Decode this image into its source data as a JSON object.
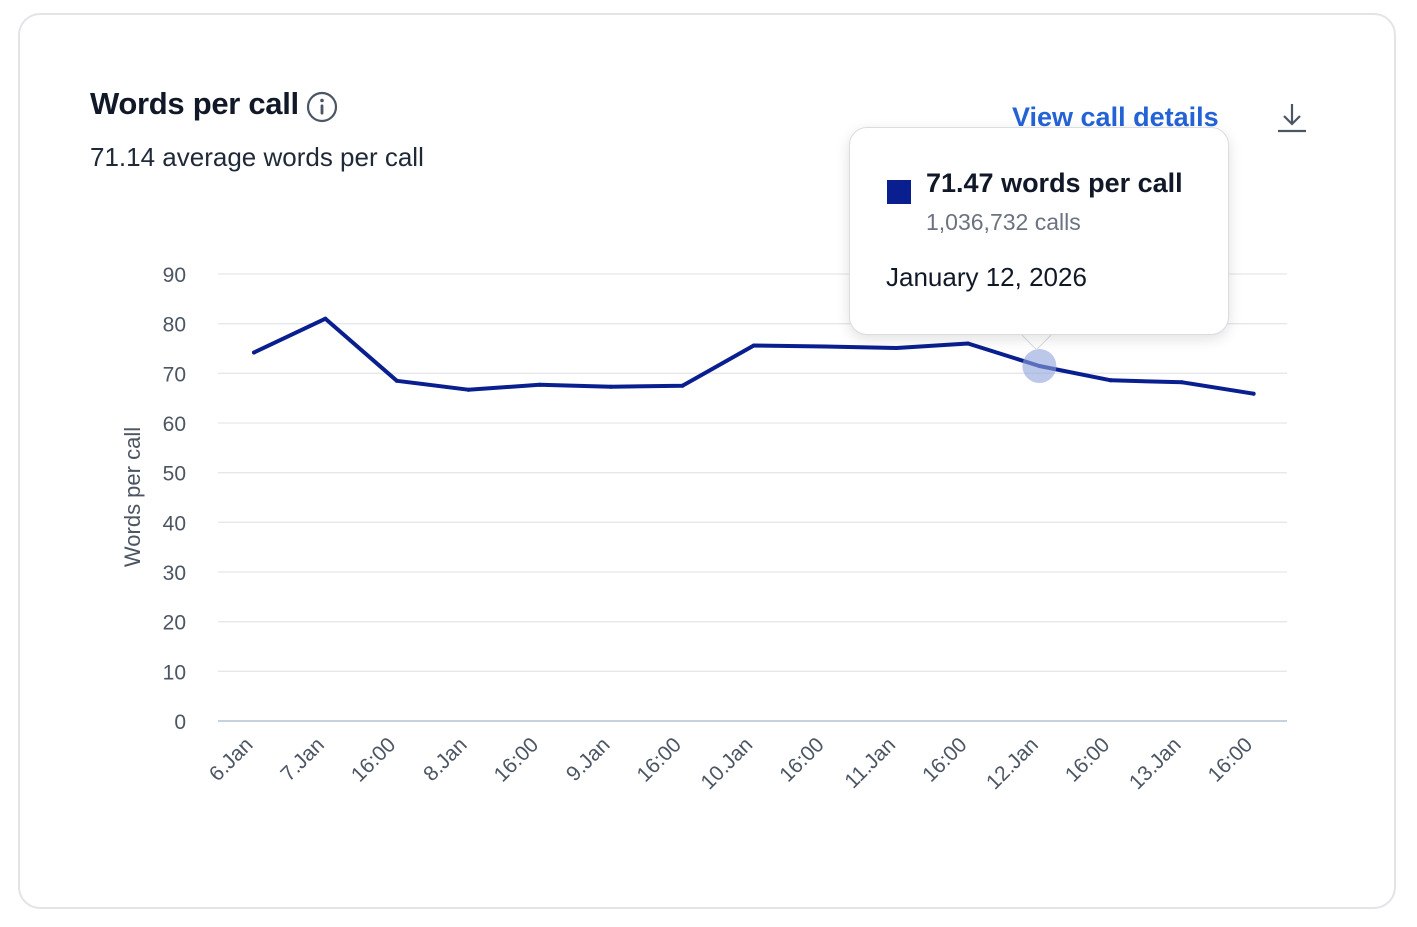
{
  "header": {
    "title": "Words per call",
    "subtitle": "71.14 average words per call",
    "details_link": "View call details",
    "info_icon": "info-circle-icon",
    "download_icon": "download-icon"
  },
  "tooltip": {
    "value_label": "71.47 words per call",
    "count_label": "1,036,732 calls",
    "date_label": "January 12, 2026",
    "swatch_color": "#0a1f8f"
  },
  "chart_data": {
    "type": "line",
    "title": "Words per call",
    "ylabel": "Words per call",
    "xlabel": "",
    "ylim": [
      0,
      90
    ],
    "yticks": [
      0,
      10,
      20,
      30,
      40,
      50,
      60,
      70,
      80,
      90
    ],
    "xticks": [
      "6.Jan",
      "7.Jan",
      "16:00",
      "8.Jan",
      "16:00",
      "9.Jan",
      "16:00",
      "10.Jan",
      "16:00",
      "11.Jan",
      "16:00",
      "12.Jan",
      "16:00",
      "13.Jan",
      "16:00"
    ],
    "grid": true,
    "line_color": "#0a1f8f",
    "highlight_color": "#8fa3dc",
    "series": [
      {
        "name": "",
        "points": [
          {
            "x": "2026-01-06T00:00",
            "y": 74.2
          },
          {
            "x": "2026-01-07T00:00",
            "y": 81.0
          },
          {
            "x": "2026-01-07T16:00",
            "y": 68.5
          },
          {
            "x": "2026-01-08T00:00",
            "y": 66.7
          },
          {
            "x": "2026-01-08T16:00",
            "y": 67.7
          },
          {
            "x": "2026-01-09T00:00",
            "y": 67.3
          },
          {
            "x": "2026-01-09T16:00",
            "y": 67.5
          },
          {
            "x": "2026-01-10T00:00",
            "y": 75.6
          },
          {
            "x": "2026-01-10T16:00",
            "y": 75.4
          },
          {
            "x": "2026-01-11T00:00",
            "y": 75.1
          },
          {
            "x": "2026-01-11T16:00",
            "y": 76.0
          },
          {
            "x": "2026-01-12T00:00",
            "y": 71.47
          },
          {
            "x": "2026-01-12T16:00",
            "y": 68.6
          },
          {
            "x": "2026-01-13T00:00",
            "y": 68.2
          },
          {
            "x": "2026-01-13T16:00",
            "y": 65.9
          }
        ]
      }
    ],
    "highlighted_point": {
      "x": "2026-01-12T00:00",
      "y": 71.47
    }
  }
}
